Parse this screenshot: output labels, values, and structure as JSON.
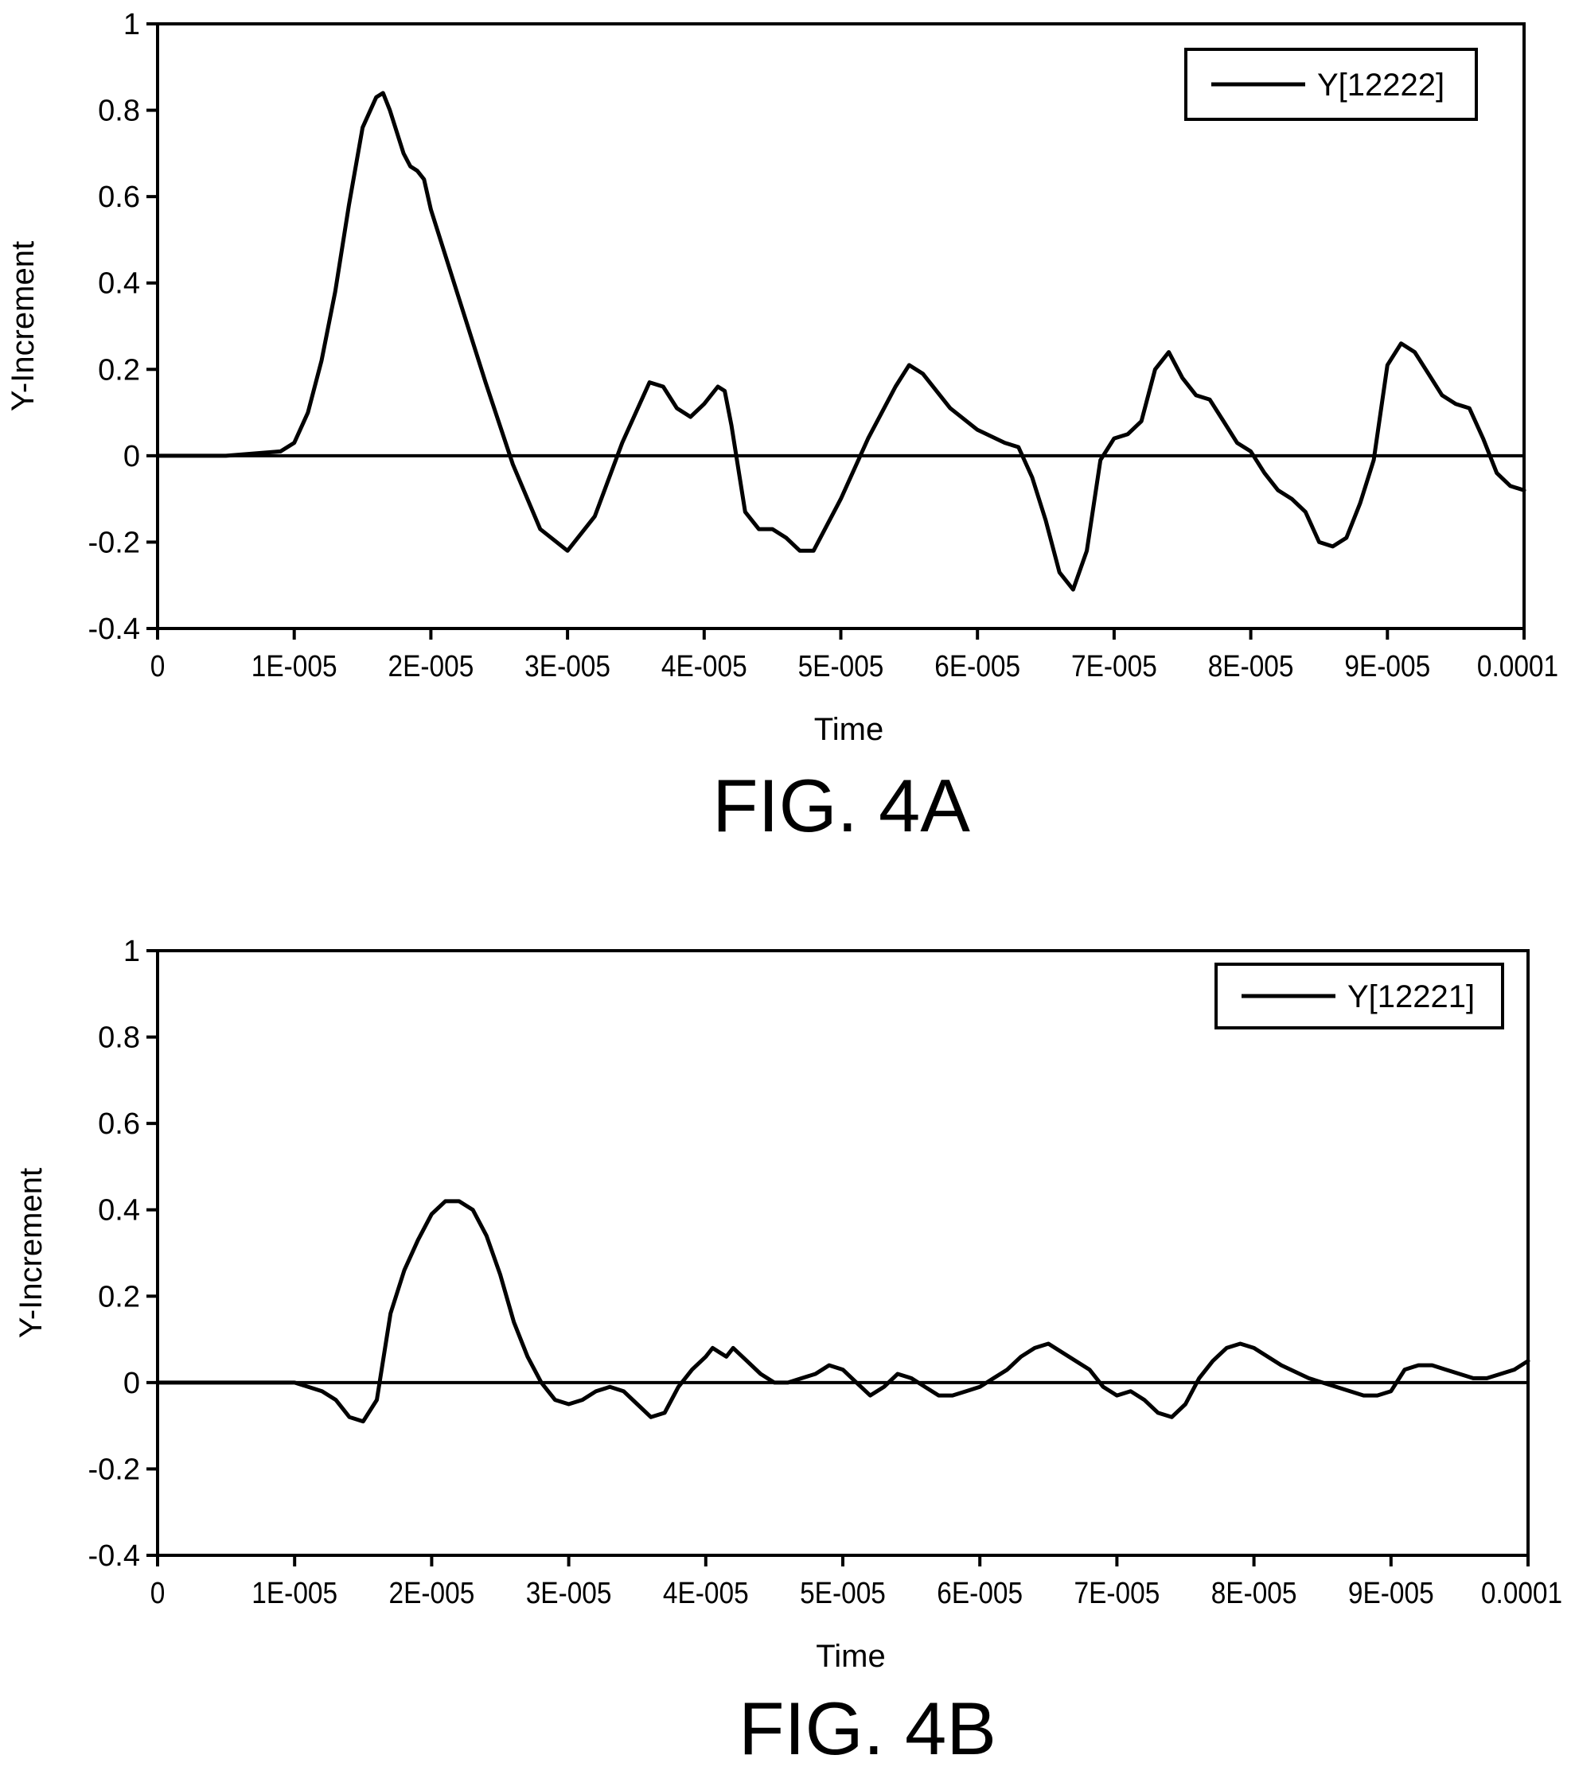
{
  "chart_data": [
    {
      "type": "line",
      "figure_label": "FIG. 4A",
      "xlabel": "Time",
      "ylabel": "Y-Increment",
      "xlim": [
        0,
        0.0001
      ],
      "ylim": [
        -0.4,
        1
      ],
      "x_ticks": [
        "0",
        "1E-005",
        "2E-005",
        "3E-005",
        "4E-005",
        "5E-005",
        "6E-005",
        "7E-005",
        "8E-005",
        "9E-005",
        "0.0001"
      ],
      "y_ticks": [
        "1",
        "0.8",
        "0.6",
        "0.4",
        "0.2",
        "0",
        "-0.2",
        "-0.4"
      ],
      "legend_position": "top-right",
      "grid": false,
      "series": [
        {
          "name": "Y[12222]",
          "x": [
            0,
            5e-06,
            9e-06,
            1e-05,
            1.1e-05,
            1.2e-05,
            1.3e-05,
            1.4e-05,
            1.5e-05,
            1.6e-05,
            1.65e-05,
            1.7e-05,
            1.8e-05,
            1.85e-05,
            1.9e-05,
            1.95e-05,
            2e-05,
            2.2e-05,
            2.4e-05,
            2.6e-05,
            2.8e-05,
            3e-05,
            3.2e-05,
            3.4e-05,
            3.6e-05,
            3.7e-05,
            3.8e-05,
            3.9e-05,
            4e-05,
            4.1e-05,
            4.15e-05,
            4.2e-05,
            4.3e-05,
            4.4e-05,
            4.5e-05,
            4.6e-05,
            4.7e-05,
            4.8e-05,
            5e-05,
            5.2e-05,
            5.4e-05,
            5.5e-05,
            5.6e-05,
            5.8e-05,
            6e-05,
            6.2e-05,
            6.3e-05,
            6.4e-05,
            6.5e-05,
            6.6e-05,
            6.7e-05,
            6.8e-05,
            6.9e-05,
            7e-05,
            7.1e-05,
            7.2e-05,
            7.3e-05,
            7.4e-05,
            7.5e-05,
            7.6e-05,
            7.7e-05,
            7.8e-05,
            7.9e-05,
            8e-05,
            8.1e-05,
            8.2e-05,
            8.3e-05,
            8.4e-05,
            8.5e-05,
            8.6e-05,
            8.7e-05,
            8.8e-05,
            8.9e-05,
            9e-05,
            9.1e-05,
            9.2e-05,
            9.3e-05,
            9.4e-05,
            9.5e-05,
            9.6e-05,
            9.7e-05,
            9.8e-05,
            9.9e-05,
            0.0001
          ],
          "y": [
            0,
            0.0,
            0.01,
            0.03,
            0.1,
            0.22,
            0.38,
            0.58,
            0.76,
            0.83,
            0.84,
            0.8,
            0.7,
            0.67,
            0.66,
            0.64,
            0.57,
            0.37,
            0.17,
            -0.02,
            -0.17,
            -0.22,
            -0.14,
            0.03,
            0.17,
            0.16,
            0.11,
            0.09,
            0.12,
            0.16,
            0.15,
            0.07,
            -0.13,
            -0.17,
            -0.17,
            -0.19,
            -0.22,
            -0.22,
            -0.1,
            0.04,
            0.16,
            0.21,
            0.19,
            0.11,
            0.06,
            0.03,
            0.02,
            -0.05,
            -0.15,
            -0.27,
            -0.31,
            -0.22,
            -0.01,
            0.04,
            0.05,
            0.08,
            0.2,
            0.24,
            0.18,
            0.14,
            0.13,
            0.08,
            0.03,
            0.01,
            -0.04,
            -0.08,
            -0.1,
            -0.13,
            -0.2,
            -0.21,
            -0.19,
            -0.11,
            -0.01,
            0.21,
            0.26,
            0.24,
            0.19,
            0.14,
            0.12,
            0.11,
            0.04,
            -0.04,
            -0.07,
            -0.08
          ]
        }
      ]
    },
    {
      "type": "line",
      "figure_label": "FIG. 4B",
      "xlabel": "Time",
      "ylabel": "Y-Increment",
      "xlim": [
        0,
        0.0001
      ],
      "ylim": [
        -0.4,
        1
      ],
      "x_ticks": [
        "0",
        "1E-005",
        "2E-005",
        "3E-005",
        "4E-005",
        "5E-005",
        "6E-005",
        "7E-005",
        "8E-005",
        "9E-005",
        "0.0001"
      ],
      "y_ticks": [
        "1",
        "0.8",
        "0.6",
        "0.4",
        "0.2",
        "0",
        "-0.2",
        "-0.4"
      ],
      "legend_position": "top-right",
      "grid": false,
      "series": [
        {
          "name": "Y[12221]",
          "x": [
            0,
            1e-05,
            1.2e-05,
            1.3e-05,
            1.4e-05,
            1.5e-05,
            1.6e-05,
            1.7e-05,
            1.8e-05,
            1.9e-05,
            2e-05,
            2.1e-05,
            2.2e-05,
            2.3e-05,
            2.4e-05,
            2.5e-05,
            2.6e-05,
            2.7e-05,
            2.8e-05,
            2.9e-05,
            3e-05,
            3.1e-05,
            3.2e-05,
            3.3e-05,
            3.4e-05,
            3.5e-05,
            3.6e-05,
            3.7e-05,
            3.8e-05,
            3.9e-05,
            4e-05,
            4.05e-05,
            4.1e-05,
            4.15e-05,
            4.2e-05,
            4.3e-05,
            4.4e-05,
            4.5e-05,
            4.6e-05,
            4.7e-05,
            4.8e-05,
            4.9e-05,
            5e-05,
            5.1e-05,
            5.2e-05,
            5.3e-05,
            5.4e-05,
            5.5e-05,
            5.6e-05,
            5.7e-05,
            5.8e-05,
            5.9e-05,
            6e-05,
            6.1e-05,
            6.2e-05,
            6.3e-05,
            6.4e-05,
            6.5e-05,
            6.6e-05,
            6.7e-05,
            6.8e-05,
            6.9e-05,
            7e-05,
            7.1e-05,
            7.2e-05,
            7.3e-05,
            7.4e-05,
            7.5e-05,
            7.6e-05,
            7.7e-05,
            7.8e-05,
            7.9e-05,
            8e-05,
            8.2e-05,
            8.4e-05,
            8.6e-05,
            8.8e-05,
            8.9e-05,
            9e-05,
            9.1e-05,
            9.2e-05,
            9.3e-05,
            9.4e-05,
            9.5e-05,
            9.6e-05,
            9.7e-05,
            9.8e-05,
            9.9e-05,
            0.0001
          ],
          "y": [
            0,
            0.0,
            -0.02,
            -0.04,
            -0.08,
            -0.09,
            -0.04,
            0.16,
            0.26,
            0.33,
            0.39,
            0.42,
            0.42,
            0.4,
            0.34,
            0.25,
            0.14,
            0.06,
            0.0,
            -0.04,
            -0.05,
            -0.04,
            -0.02,
            -0.01,
            -0.02,
            -0.05,
            -0.08,
            -0.07,
            -0.01,
            0.03,
            0.06,
            0.08,
            0.07,
            0.06,
            0.08,
            0.05,
            0.02,
            0.0,
            0.0,
            0.01,
            0.02,
            0.04,
            0.03,
            0.0,
            -0.03,
            -0.01,
            0.02,
            0.01,
            -0.01,
            -0.03,
            -0.03,
            -0.02,
            -0.01,
            0.01,
            0.03,
            0.06,
            0.08,
            0.09,
            0.07,
            0.05,
            0.03,
            -0.01,
            -0.03,
            -0.02,
            -0.04,
            -0.07,
            -0.08,
            -0.05,
            0.01,
            0.05,
            0.08,
            0.09,
            0.08,
            0.04,
            0.01,
            -0.01,
            -0.03,
            -0.03,
            -0.02,
            0.03,
            0.04,
            0.04,
            0.03,
            0.02,
            0.01,
            0.01,
            0.02,
            0.03,
            0.05
          ]
        }
      ]
    }
  ]
}
